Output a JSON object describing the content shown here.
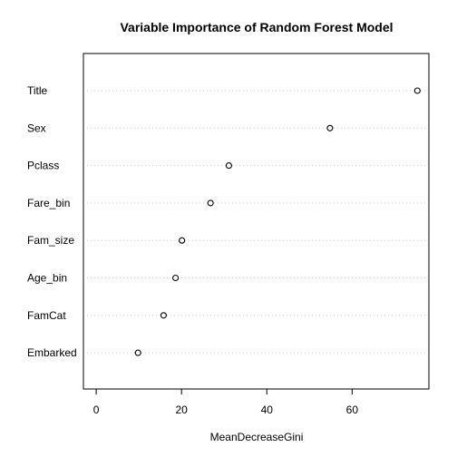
{
  "chart_data": {
    "type": "scatter",
    "title": "Variable Importance of Random Forest Model",
    "xlabel": "MeanDecreaseGini",
    "ylabel": "",
    "xlim": [
      -3,
      78
    ],
    "xticks": [
      0,
      20,
      40,
      60
    ],
    "grid": "dotted horizontal guide lines",
    "legend": "none",
    "categories": [
      "Title",
      "Sex",
      "Pclass",
      "Fare_bin",
      "Fam_size",
      "Age_bin",
      "FamCat",
      "Embarked"
    ],
    "values": [
      75.3,
      54.8,
      31.1,
      26.8,
      20.1,
      18.6,
      15.8,
      9.8
    ]
  }
}
